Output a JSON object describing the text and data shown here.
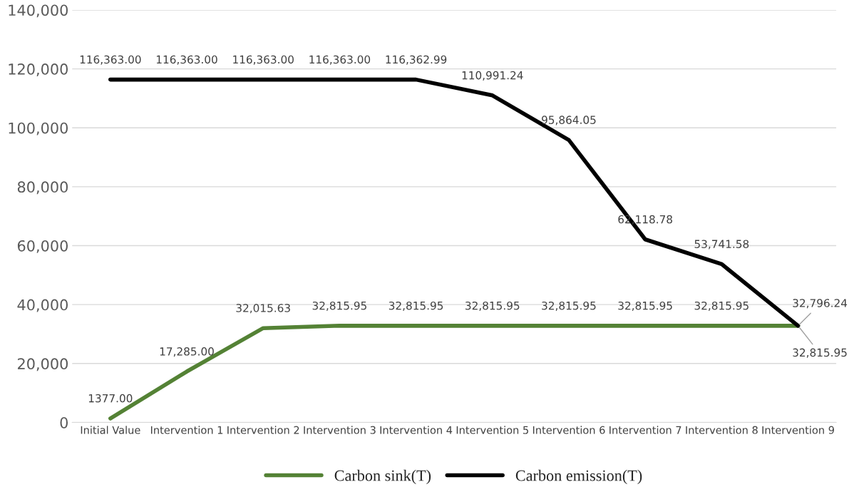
{
  "chart_data": {
    "type": "line",
    "categories": [
      "Initial Value",
      "Intervention 1",
      "Intervention 2",
      "Intervention 3",
      "Intervention 4",
      "Intervention 5",
      "Intervention 6",
      "Intervention 7",
      "Intervention 8",
      "Intervention 9"
    ],
    "series": [
      {
        "name": "Carbon sink(T)",
        "color": "#548235",
        "values": [
          1377.0,
          17285.0,
          32015.63,
          32815.95,
          32815.95,
          32815.95,
          32815.95,
          32815.95,
          32815.95,
          32815.95
        ],
        "value_labels": [
          "1377.00",
          "17,285.00",
          "32,015.63",
          "32,815.95",
          "32,815.95",
          "32,815.95",
          "32,815.95",
          "32,815.95",
          "32,815.95",
          "32,815.95"
        ]
      },
      {
        "name": "Carbon emission(T)",
        "color": "#000000",
        "values": [
          116363.0,
          116363.0,
          116363.0,
          116363.0,
          116362.99,
          110991.24,
          95864.05,
          62118.78,
          53741.58,
          32796.24
        ],
        "value_labels": [
          "116,363.00",
          "116,363.00",
          "116,363.00",
          "116,363.00",
          "116,362.99",
          "110,991.24",
          "95,864.05",
          "62,118.78",
          "53,741.58",
          "32,796.24"
        ]
      }
    ],
    "ylim": [
      0,
      140000
    ],
    "yticks": [
      {
        "value": 0,
        "label": "0"
      },
      {
        "value": 20000,
        "label": "20,000"
      },
      {
        "value": 40000,
        "label": "40,000"
      },
      {
        "value": 60000,
        "label": "60,000"
      },
      {
        "value": 80000,
        "label": "80,000"
      },
      {
        "value": 100000,
        "label": "100,000"
      },
      {
        "value": 120000,
        "label": "120,000"
      },
      {
        "value": 140000,
        "label": "140,000"
      }
    ],
    "grid": "y",
    "legend": "bottom",
    "marker": "none",
    "line_style": "solid"
  }
}
